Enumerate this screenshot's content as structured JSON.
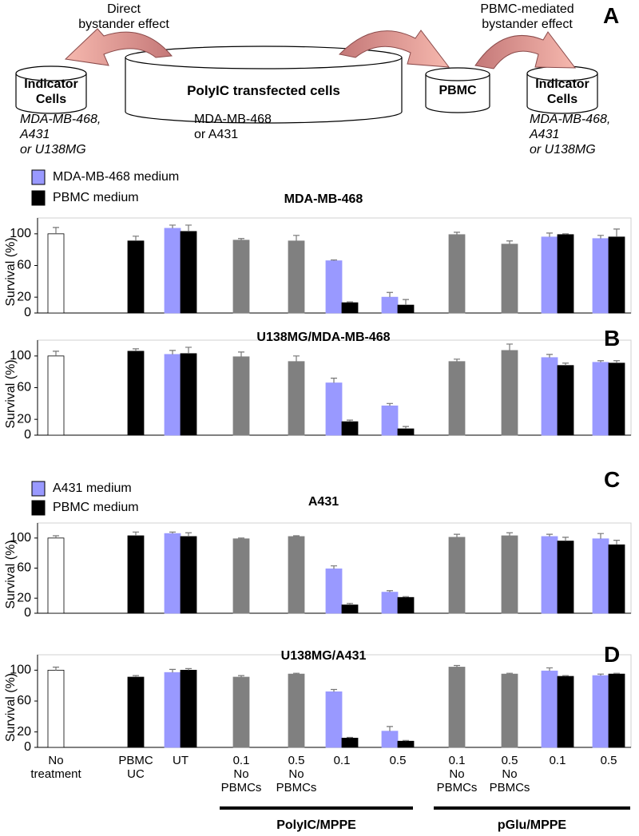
{
  "diagram": {
    "panel": "A",
    "left_arrow": "Direct\nbystander effect",
    "right_arrow": "PBMC-mediated\nbystander effect",
    "cylinders": [
      "Indicator\nCells",
      "PolyIC transfected cells",
      "PBMC",
      "Indicator\nCells"
    ],
    "notes": [
      "MDA-MB-468,\nA431\nor U138MG",
      "MDA-MB-468\nor A431",
      "MDA-MB-468,\nA431\nor U138MG"
    ]
  },
  "chart_data": [
    {
      "type": "bar",
      "title": "MDA-MB-468",
      "y_label": "Survival (%)",
      "legend": "top-left",
      "categories": [
        null,
        null,
        null,
        null,
        null,
        null,
        null,
        null,
        null,
        null,
        null
      ],
      "ylim": [
        0,
        120
      ],
      "yticks": [
        0,
        20,
        60,
        100
      ],
      "series": [
        {
          "name": "MDA-MB-468 medium",
          "color": "#9999ff",
          "values": [
            null,
            null,
            107,
            null,
            null,
            66,
            20,
            null,
            null,
            96,
            94
          ],
          "errors": [
            null,
            null,
            4,
            null,
            null,
            1,
            6,
            null,
            null,
            5,
            4
          ]
        },
        {
          "name": "PBMC medium",
          "color": "#000000",
          "values": [
            null,
            91,
            103,
            null,
            null,
            13,
            10,
            null,
            null,
            99,
            96
          ],
          "errors": [
            null,
            6,
            8,
            null,
            null,
            1,
            7,
            null,
            null,
            1,
            10
          ]
        },
        {
          "color": "#ffffff",
          "values": [
            100,
            null,
            null,
            null,
            null,
            null,
            null,
            null,
            null,
            null,
            null
          ],
          "errors": [
            8,
            null,
            null,
            null,
            null,
            null,
            null,
            null,
            null,
            null,
            null
          ]
        },
        {
          "color": "#808080",
          "values": [
            null,
            null,
            null,
            92,
            91,
            null,
            null,
            99,
            87,
            null,
            null
          ],
          "errors": [
            null,
            null,
            null,
            2,
            7,
            null,
            null,
            3,
            4,
            null,
            null
          ]
        }
      ]
    },
    {
      "type": "bar",
      "title": "U138MG/MDA-MB-468",
      "panel": "B",
      "y_label": "Survival (%)",
      "categories": [
        null,
        null,
        null,
        null,
        null,
        null,
        null,
        null,
        null,
        null,
        null
      ],
      "ylim": [
        0,
        120
      ],
      "yticks": [
        0,
        20,
        60,
        100
      ],
      "series": [
        {
          "color": "#9999ff",
          "values": [
            null,
            null,
            102,
            null,
            null,
            66,
            37,
            null,
            null,
            98,
            92
          ],
          "errors": [
            null,
            null,
            5,
            null,
            null,
            6,
            3,
            null,
            null,
            4,
            2
          ]
        },
        {
          "color": "#000000",
          "values": [
            null,
            106,
            103,
            null,
            null,
            17,
            8,
            null,
            null,
            88,
            91
          ],
          "errors": [
            null,
            3,
            8,
            null,
            null,
            2,
            3,
            null,
            null,
            3,
            3
          ]
        },
        {
          "color": "#ffffff",
          "values": [
            100,
            null,
            null,
            null,
            null,
            null,
            null,
            null,
            null,
            null,
            null
          ],
          "errors": [
            6,
            null,
            null,
            null,
            null,
            null,
            null,
            null,
            null,
            null,
            null
          ]
        },
        {
          "color": "#808080",
          "values": [
            null,
            null,
            null,
            99,
            93,
            null,
            null,
            93,
            107,
            null,
            null
          ],
          "errors": [
            null,
            null,
            null,
            6,
            7,
            null,
            null,
            3,
            8,
            null,
            null
          ]
        }
      ]
    },
    {
      "type": "bar",
      "title": "A431",
      "panel": "C",
      "y_label": "Survival (%)",
      "legend": "top-left",
      "categories": [
        null,
        null,
        null,
        null,
        null,
        null,
        null,
        null,
        null,
        null,
        null
      ],
      "ylim": [
        0,
        120
      ],
      "yticks": [
        0,
        20,
        60,
        100
      ],
      "series": [
        {
          "name": "A431 medium",
          "color": "#9999ff",
          "values": [
            null,
            null,
            106,
            null,
            null,
            59,
            28,
            null,
            null,
            102,
            99
          ],
          "errors": [
            null,
            null,
            2,
            null,
            null,
            4,
            2,
            null,
            null,
            3,
            7
          ]
        },
        {
          "name": "PBMC medium",
          "color": "#000000",
          "values": [
            null,
            103,
            102,
            null,
            null,
            11,
            21,
            null,
            null,
            96,
            91
          ],
          "errors": [
            null,
            5,
            5,
            null,
            null,
            2,
            1,
            null,
            null,
            5,
            6
          ]
        },
        {
          "color": "#ffffff",
          "values": [
            100,
            null,
            null,
            null,
            null,
            null,
            null,
            null,
            null,
            null,
            null
          ],
          "errors": [
            3,
            null,
            null,
            null,
            null,
            null,
            null,
            null,
            null,
            null,
            null
          ]
        },
        {
          "color": "#808080",
          "values": [
            null,
            null,
            null,
            99,
            102,
            null,
            null,
            101,
            103,
            null,
            null
          ],
          "errors": [
            null,
            null,
            null,
            1,
            1,
            null,
            null,
            4,
            4,
            null,
            null
          ]
        }
      ]
    },
    {
      "type": "bar",
      "title": "U138MG/A431",
      "panel": "D",
      "y_label": "Survival (%)",
      "categories": [
        "No\ntreatment",
        "PBMC\nUC",
        "UT",
        "0.1\nNo\nPBMCs",
        "0.5\nNo\nPBMCs",
        "0.1",
        "0.5",
        "0.1\nNo\nPBMCs",
        "0.5\nNo\nPBMCs",
        "0.1",
        "0.5"
      ],
      "group_labels": [
        "PolyIC/MPPE",
        "pGlu/MPPE"
      ],
      "ylim": [
        0,
        120
      ],
      "yticks": [
        0,
        20,
        60,
        100
      ],
      "series": [
        {
          "color": "#9999ff",
          "values": [
            null,
            null,
            97,
            null,
            null,
            72,
            21,
            null,
            null,
            99,
            93
          ],
          "errors": [
            null,
            null,
            4,
            null,
            null,
            3,
            6,
            null,
            null,
            4,
            2
          ]
        },
        {
          "color": "#000000",
          "values": [
            null,
            91,
            100,
            null,
            null,
            12,
            8,
            null,
            null,
            92,
            95
          ],
          "errors": [
            null,
            2,
            2,
            null,
            null,
            1,
            1,
            null,
            null,
            1,
            1
          ]
        },
        {
          "color": "#ffffff",
          "values": [
            100,
            null,
            null,
            null,
            null,
            null,
            null,
            null,
            null,
            null,
            null
          ],
          "errors": [
            4,
            null,
            null,
            null,
            null,
            null,
            null,
            null,
            null,
            null,
            null
          ]
        },
        {
          "color": "#808080",
          "values": [
            null,
            null,
            null,
            91,
            95,
            null,
            null,
            104,
            95,
            null,
            null
          ],
          "errors": [
            null,
            null,
            null,
            2,
            1,
            null,
            null,
            2,
            1,
            null,
            null
          ]
        }
      ]
    }
  ]
}
